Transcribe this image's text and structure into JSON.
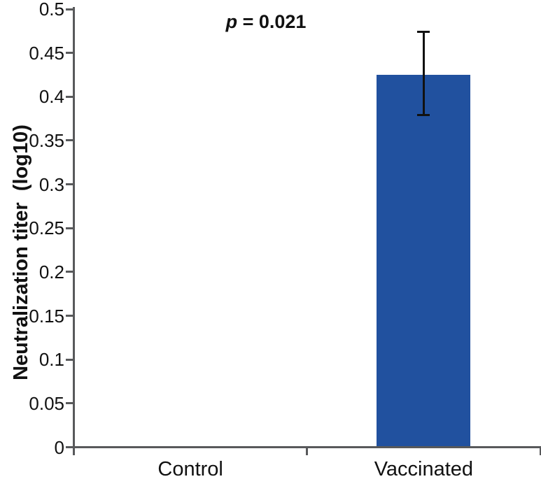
{
  "chart_data": {
    "type": "bar",
    "categories": [
      "Control",
      "Vaccinated"
    ],
    "values": [
      0,
      0.425
    ],
    "errors": [
      null,
      {
        "upper": 0.474,
        "lower": 0.379
      }
    ],
    "title": "",
    "xlabel": "",
    "ylabel": "Neutralization titer  (log10)",
    "ylim": [
      0,
      0.5
    ],
    "ytick_step": 0.05,
    "ytick_labels": [
      "0",
      "0.05",
      "0.1",
      "0.15",
      "0.2",
      "0.25",
      "0.3",
      "0.35",
      "0.4",
      "0.45",
      "0.5"
    ],
    "annotation": {
      "symbol": "p",
      "text": " = 0.021"
    },
    "legend": null,
    "grid": false,
    "colors": {
      "bar": "#21519f",
      "axis": "#58595b",
      "error_bar": "#111111",
      "text": "#111111"
    }
  }
}
